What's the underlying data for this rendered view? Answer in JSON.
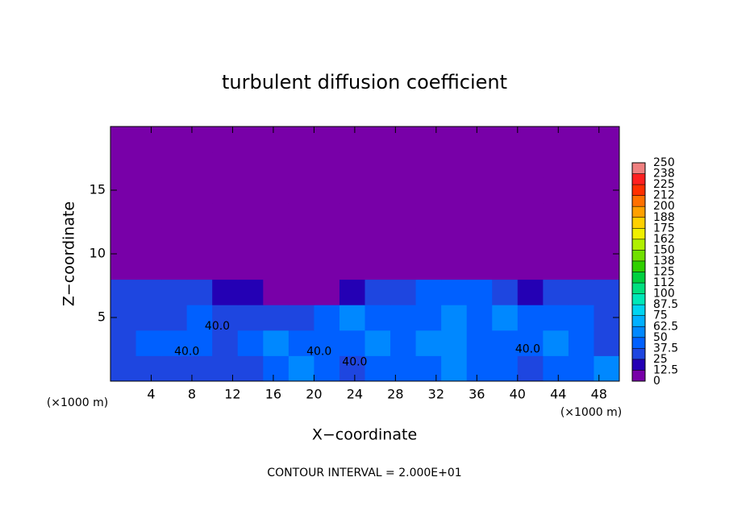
{
  "chart_data": {
    "type": "heatmap",
    "title": "turbulent diffusion coefficient",
    "xlabel": "X−coordinate",
    "ylabel": "Z−coordinate",
    "x_unit_left": "(×1000 m)",
    "x_unit_right": "(×1000 m)",
    "footer": "CONTOUR INTERVAL = 2.000E+01",
    "xlim": [
      0,
      50
    ],
    "xticks": [
      4,
      8,
      12,
      16,
      20,
      24,
      28,
      32,
      36,
      40,
      44,
      48
    ],
    "ylim": [
      0,
      20
    ],
    "yticks": [
      5,
      10,
      15
    ],
    "x": [
      1.25,
      3.75,
      6.25,
      8.75,
      11.25,
      13.75,
      16.25,
      18.75,
      21.25,
      23.75,
      26.25,
      28.75,
      31.25,
      33.75,
      36.25,
      38.75,
      41.25,
      43.75,
      46.25,
      48.75
    ],
    "y": [
      1,
      3,
      5,
      7,
      9,
      11,
      13,
      15,
      17,
      19
    ],
    "z": [
      [
        30,
        32,
        35,
        33,
        30,
        28,
        45,
        55,
        40,
        35,
        38,
        40,
        42,
        55,
        45,
        40,
        35,
        45,
        40,
        60
      ],
      [
        35,
        38,
        40,
        45,
        35,
        40,
        50,
        45,
        38,
        45,
        50,
        40,
        55,
        60,
        40,
        45,
        42,
        55,
        45,
        35
      ],
      [
        30,
        35,
        35,
        40,
        30,
        28,
        30,
        35,
        40,
        50,
        48,
        45,
        40,
        55,
        42,
        50,
        45,
        40,
        48,
        35
      ],
      [
        30,
        25,
        30,
        28,
        20,
        15,
        10,
        12,
        10,
        18,
        25,
        35,
        40,
        45,
        40,
        25,
        20,
        30,
        35,
        30
      ],
      [
        0,
        0,
        0,
        0,
        0,
        0,
        0,
        0,
        0,
        0,
        0,
        0,
        0,
        0,
        0,
        0,
        0,
        0,
        0,
        0
      ],
      [
        0,
        0,
        0,
        0,
        0,
        0,
        0,
        0,
        0,
        0,
        0,
        0,
        0,
        0,
        0,
        0,
        0,
        0,
        0,
        0
      ],
      [
        0,
        0,
        0,
        0,
        0,
        0,
        0,
        0,
        0,
        0,
        0,
        0,
        0,
        0,
        0,
        0,
        0,
        0,
        0,
        0
      ],
      [
        0,
        0,
        0,
        0,
        0,
        0,
        0,
        0,
        0,
        0,
        0,
        0,
        0,
        0,
        0,
        0,
        0,
        0,
        0,
        0
      ],
      [
        0,
        0,
        0,
        0,
        0,
        0,
        0,
        0,
        0,
        0,
        0,
        0,
        0,
        0,
        0,
        0,
        0,
        0,
        0,
        0
      ],
      [
        0,
        0,
        0,
        0,
        0,
        0,
        0,
        0,
        0,
        0,
        0,
        0,
        0,
        0,
        0,
        0,
        0,
        0,
        0,
        0
      ]
    ],
    "contour_labels": [
      {
        "text": "40.0",
        "x": 10.5,
        "y": 4.3
      },
      {
        "text": "40.0",
        "x": 7.5,
        "y": 2.3
      },
      {
        "text": "40.0",
        "x": 20.5,
        "y": 2.3
      },
      {
        "text": "40.0",
        "x": 24,
        "y": 1.5
      },
      {
        "text": "40.0",
        "x": 41,
        "y": 2.5
      }
    ],
    "colorbar": {
      "ticks": [
        0,
        12.5,
        25,
        37.5,
        50,
        62.5,
        75,
        87.5,
        100,
        {
          "value": 112.5,
          "label": "112"
        },
        125,
        {
          "value": 137.5,
          "label": "138"
        },
        150,
        {
          "value": 162.5,
          "label": "162"
        },
        175,
        {
          "value": 187.5,
          "label": "188"
        },
        200,
        {
          "value": 212.5,
          "label": "212"
        },
        225,
        {
          "value": 237.5,
          "label": "238"
        },
        250
      ],
      "colors": [
        "#7800a8",
        "#2400b4",
        "#1e46e0",
        "#0060ff",
        "#0088ff",
        "#00b0ff",
        "#00d4f0",
        "#00e8b8",
        "#00e080",
        "#00d040",
        "#30d000",
        "#70e000",
        "#b0f000",
        "#f0f000",
        "#ffd000",
        "#ffa000",
        "#ff7000",
        "#ff3000",
        "#ff2020",
        "#f08080"
      ]
    }
  }
}
